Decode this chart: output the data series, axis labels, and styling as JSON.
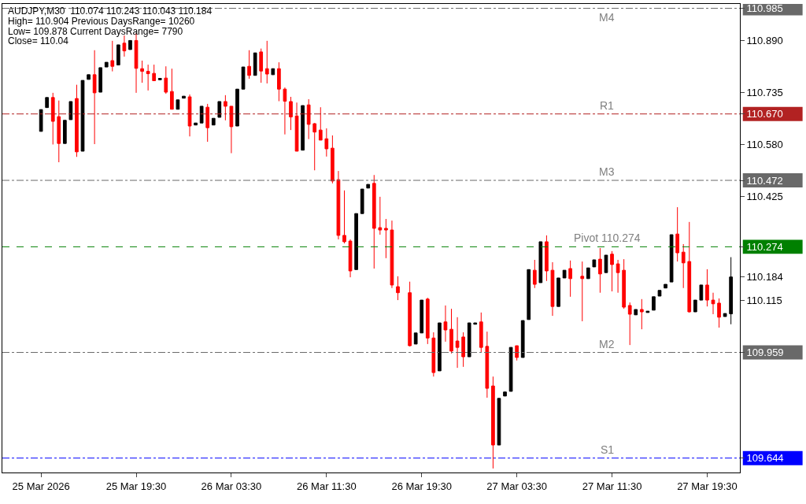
{
  "chart_data": {
    "type": "candlestick",
    "annotations": [
      "AUDJPY,M30  110.074 110.243 110.043 110.184",
      "High= 110.904 Previous DaysRange= 10260",
      "Low= 109.878 Current DaysRange= 7790",
      "Close= 110.04"
    ],
    "x": [
      "2026-03-25T11:30",
      "2026-03-25T12:00",
      "2026-03-25T12:30",
      "2026-03-25T13:00",
      "2026-03-25T13:30",
      "2026-03-25T14:00",
      "2026-03-25T14:30",
      "2026-03-25T15:00",
      "2026-03-25T15:30",
      "2026-03-25T16:00",
      "2026-03-25T16:30",
      "2026-03-25T17:00",
      "2026-03-25T17:30",
      "2026-03-25T18:00",
      "2026-03-25T18:30",
      "2026-03-25T19:00",
      "2026-03-25T19:30",
      "2026-03-25T20:00",
      "2026-03-25T20:30",
      "2026-03-25T21:00",
      "2026-03-25T21:30",
      "2026-03-25T22:00",
      "2026-03-25T22:30",
      "2026-03-25T23:00",
      "2026-03-25T23:30",
      "2026-03-26T00:00",
      "2026-03-26T00:30",
      "2026-03-26T01:00",
      "2026-03-26T01:30",
      "2026-03-26T02:00",
      "2026-03-26T02:30",
      "2026-03-26T03:00",
      "2026-03-26T03:30",
      "2026-03-26T04:00",
      "2026-03-26T04:30",
      "2026-03-26T05:00",
      "2026-03-26T05:30",
      "2026-03-26T06:00",
      "2026-03-26T06:30",
      "2026-03-26T07:00",
      "2026-03-26T07:30",
      "2026-03-26T08:00",
      "2026-03-26T08:30",
      "2026-03-26T09:00",
      "2026-03-26T09:30",
      "2026-03-26T10:00",
      "2026-03-26T10:30",
      "2026-03-26T11:00",
      "2026-03-26T11:30",
      "2026-03-26T12:00",
      "2026-03-26T12:30",
      "2026-03-26T13:00",
      "2026-03-26T13:30",
      "2026-03-26T14:00",
      "2026-03-26T14:30",
      "2026-03-26T15:00",
      "2026-03-26T15:30",
      "2026-03-26T16:00",
      "2026-03-26T16:30",
      "2026-03-26T17:00",
      "2026-03-26T17:30",
      "2026-03-26T18:30",
      "2026-03-26T19:00",
      "2026-03-26T19:30",
      "2026-03-26T20:00",
      "2026-03-26T20:30",
      "2026-03-26T21:00",
      "2026-03-26T21:30",
      "2026-03-26T22:00",
      "2026-03-26T22:30",
      "2026-03-26T23:00",
      "2026-03-26T23:30",
      "2026-03-27T00:00",
      "2026-03-27T00:30",
      "2026-03-27T01:00",
      "2026-03-27T01:30",
      "2026-03-27T02:00",
      "2026-03-27T02:30",
      "2026-03-27T03:00",
      "2026-03-27T03:30",
      "2026-03-27T04:00",
      "2026-03-27T04:30",
      "2026-03-27T05:00",
      "2026-03-27T05:30",
      "2026-03-27T06:00",
      "2026-03-27T06:30",
      "2026-03-27T07:00",
      "2026-03-27T07:30",
      "2026-03-27T08:00",
      "2026-03-27T09:00",
      "2026-03-27T09:30",
      "2026-03-27T10:00",
      "2026-03-27T10:30",
      "2026-03-27T11:00",
      "2026-03-27T11:30",
      "2026-03-27T12:00",
      "2026-03-27T12:30",
      "2026-03-27T13:00",
      "2026-03-27T13:30",
      "2026-03-27T14:00",
      "2026-03-27T14:30",
      "2026-03-27T15:00",
      "2026-03-27T15:30",
      "2026-03-27T16:00",
      "2026-03-27T16:30",
      "2026-03-27T17:00",
      "2026-03-27T17:30",
      "2026-03-27T18:00",
      "2026-03-27T18:30",
      "2026-03-27T19:00",
      "2026-03-27T19:30",
      "2026-03-27T20:00",
      "2026-03-27T20:30",
      "2026-03-27T21:00",
      "2026-03-27T21:30"
    ],
    "ohlc": [
      [
        110.618,
        110.683,
        110.618,
        110.683
      ],
      [
        110.689,
        110.719,
        110.689,
        110.719
      ],
      [
        110.719,
        110.733,
        110.579,
        110.648
      ],
      [
        110.662,
        110.71,
        110.526,
        110.582
      ],
      [
        110.582,
        110.651,
        110.582,
        110.651
      ],
      [
        110.653,
        110.707,
        110.653,
        110.707
      ],
      [
        110.716,
        110.757,
        110.542,
        110.557
      ],
      [
        110.559,
        110.77,
        110.559,
        110.77
      ],
      [
        110.773,
        110.787,
        110.773,
        110.787
      ],
      [
        110.787,
        110.86,
        110.58,
        110.733
      ],
      [
        110.735,
        110.808,
        110.735,
        110.808
      ],
      [
        110.81,
        110.824,
        110.81,
        110.824
      ],
      [
        110.829,
        110.888,
        110.797,
        110.812
      ],
      [
        110.816,
        110.876,
        110.816,
        110.876
      ],
      [
        110.881,
        110.904,
        110.841,
        110.858
      ],
      [
        110.862,
        110.889,
        110.862,
        110.889
      ],
      [
        110.889,
        110.911,
        110.733,
        110.806
      ],
      [
        110.805,
        110.829,
        110.763,
        110.797
      ],
      [
        110.797,
        110.817,
        110.74,
        110.79
      ],
      [
        110.791,
        110.817,
        110.769,
        110.769
      ],
      [
        110.772,
        110.776,
        110.772,
        110.776
      ],
      [
        110.777,
        110.812,
        110.73,
        110.735
      ],
      [
        110.737,
        110.805,
        110.684,
        110.684
      ],
      [
        110.684,
        110.712,
        110.684,
        110.712
      ],
      [
        110.717,
        110.723,
        110.717,
        110.723
      ],
      [
        110.721,
        110.728,
        110.603,
        110.634
      ],
      [
        110.637,
        110.643,
        110.637,
        110.643
      ],
      [
        110.643,
        110.693,
        110.643,
        110.693
      ],
      [
        110.69,
        110.7,
        110.587,
        110.629
      ],
      [
        110.637,
        110.657,
        110.637,
        110.657
      ],
      [
        110.66,
        110.707,
        110.66,
        110.707
      ],
      [
        110.707,
        110.726,
        110.651,
        110.693
      ],
      [
        110.693,
        110.693,
        110.553,
        110.632
      ],
      [
        110.634,
        110.744,
        110.634,
        110.744
      ],
      [
        110.744,
        110.81,
        110.744,
        110.81
      ],
      [
        110.812,
        110.86,
        110.775,
        110.785
      ],
      [
        110.785,
        110.852,
        110.785,
        110.852
      ],
      [
        110.855,
        110.865,
        110.763,
        110.798
      ],
      [
        110.805,
        110.888,
        110.761,
        110.789
      ],
      [
        110.787,
        110.805,
        110.787,
        110.805
      ],
      [
        110.805,
        110.824,
        110.708,
        110.744
      ],
      [
        110.744,
        110.749,
        110.609,
        110.708
      ],
      [
        110.707,
        110.721,
        110.622,
        110.661
      ],
      [
        110.664,
        110.704,
        110.559,
        110.559
      ],
      [
        110.562,
        110.695,
        110.562,
        110.695
      ],
      [
        110.697,
        110.714,
        110.595,
        110.639
      ],
      [
        110.641,
        110.643,
        110.502,
        110.616
      ],
      [
        110.622,
        110.69,
        110.592,
        110.592
      ],
      [
        110.596,
        110.627,
        110.543,
        110.566
      ],
      [
        110.568,
        110.606,
        110.463,
        110.47
      ],
      [
        110.474,
        110.5,
        110.296,
        110.308
      ],
      [
        110.308,
        110.442,
        110.284,
        110.289
      ],
      [
        110.291,
        110.296,
        110.183,
        110.202
      ],
      [
        110.206,
        110.373,
        110.206,
        110.373
      ],
      [
        110.373,
        110.446,
        110.373,
        110.446
      ],
      [
        110.449,
        110.46,
        110.449,
        110.46
      ],
      [
        110.463,
        110.488,
        110.209,
        110.329
      ],
      [
        110.331,
        110.423,
        110.31,
        110.324
      ],
      [
        110.329,
        110.357,
        110.24,
        110.324
      ],
      [
        110.324,
        110.352,
        110.151,
        110.16
      ],
      [
        110.155,
        110.186,
        110.115,
        110.137
      ],
      [
        110.137,
        110.17,
        109.977,
        109.979
      ],
      [
        109.984,
        110.017,
        109.984,
        110.017
      ],
      [
        110.017,
        110.115,
        110.017,
        110.115
      ],
      [
        110.118,
        110.122,
        109.984,
        110.002
      ],
      [
        110.002,
        110.019,
        109.887,
        109.899
      ],
      [
        109.904,
        110.047,
        109.904,
        110.047
      ],
      [
        110.05,
        110.099,
        109.991,
        110.026
      ],
      [
        110.028,
        110.089,
        109.956,
        109.963
      ],
      [
        109.993,
        110.064,
        109.913,
        109.974
      ],
      [
        110.005,
        110.019,
        109.916,
        109.946
      ],
      [
        109.946,
        110.047,
        109.946,
        110.047
      ],
      [
        110.043,
        110.047,
        110.043,
        110.047
      ],
      [
        110.05,
        110.078,
        109.96,
        109.974
      ],
      [
        109.977,
        110.021,
        109.824,
        109.852
      ],
      [
        109.859,
        109.887,
        109.613,
        109.683
      ],
      [
        109.683,
        109.822,
        109.683,
        109.822
      ],
      [
        109.829,
        109.841,
        109.829,
        109.841
      ],
      [
        109.843,
        109.974,
        109.843,
        109.974
      ],
      [
        109.979,
        109.979,
        109.935,
        109.944
      ],
      [
        109.944,
        110.054,
        109.944,
        110.054
      ],
      [
        110.057,
        110.206,
        110.057,
        110.206
      ],
      [
        110.204,
        110.235,
        110.151,
        110.162
      ],
      [
        110.167,
        110.289,
        110.167,
        110.289
      ],
      [
        110.289,
        110.308,
        110.172,
        110.202
      ],
      [
        110.204,
        110.228,
        110.068,
        110.096
      ],
      [
        110.096,
        110.181,
        110.096,
        110.181
      ],
      [
        110.181,
        110.204,
        110.181,
        110.204
      ],
      [
        110.209,
        110.233,
        110.125,
        110.179
      ],
      [
        110.186,
        110.23,
        110.052,
        110.179
      ],
      [
        110.179,
        110.211,
        110.179,
        110.211
      ],
      [
        110.214,
        110.235,
        110.214,
        110.235
      ],
      [
        110.237,
        110.27,
        110.137,
        110.193
      ],
      [
        110.197,
        110.249,
        110.197,
        110.249
      ],
      [
        110.252,
        110.261,
        110.141,
        110.221
      ],
      [
        110.223,
        110.235,
        110.137,
        110.197
      ],
      [
        110.204,
        110.237,
        110.089,
        110.094
      ],
      [
        110.099,
        110.108,
        109.981,
        110.073
      ],
      [
        110.071,
        110.087,
        110.071,
        110.087
      ],
      [
        110.087,
        110.118,
        110.028,
        110.08
      ],
      [
        110.078,
        110.082,
        110.078,
        110.082
      ],
      [
        110.085,
        110.125,
        110.085,
        110.125
      ],
      [
        110.127,
        110.144,
        110.127,
        110.144
      ],
      [
        110.151,
        110.162,
        110.151,
        110.162
      ],
      [
        110.169,
        110.31,
        110.169,
        110.31
      ],
      [
        110.312,
        110.392,
        110.23,
        110.256
      ],
      [
        110.258,
        110.282,
        110.151,
        110.226
      ],
      [
        110.23,
        110.348,
        110.078,
        110.08
      ],
      [
        110.08,
        110.115,
        110.08,
        110.115
      ],
      [
        110.115,
        110.16,
        110.115,
        110.16
      ],
      [
        110.16,
        110.207,
        110.096,
        110.115
      ],
      [
        110.115,
        110.137,
        110.073,
        110.104
      ],
      [
        110.106,
        110.12,
        110.033,
        110.064
      ],
      [
        110.066,
        110.075,
        110.066,
        110.075
      ],
      [
        110.074,
        110.243,
        110.043,
        110.184
      ]
    ],
    "colors": [
      "#000000",
      "#000000",
      "#ff0000",
      "#ff0000",
      "#000000",
      "#000000",
      "#ff0000",
      "#000000",
      "#000000",
      "#ff0000",
      "#000000",
      "#000000",
      "#ff0000",
      "#000000",
      "#ff0000",
      "#000000",
      "#ff0000",
      "#ff0000",
      "#ff0000",
      "#ff0000",
      "#000000",
      "#ff0000",
      "#ff0000",
      "#000000",
      "#000000",
      "#ff0000",
      "#000000",
      "#000000",
      "#ff0000",
      "#000000",
      "#000000",
      "#ff0000",
      "#ff0000",
      "#000000",
      "#000000",
      "#ff0000",
      "#000000",
      "#ff0000",
      "#ff0000",
      "#000000",
      "#ff0000",
      "#ff0000",
      "#ff0000",
      "#ff0000",
      "#000000",
      "#ff0000",
      "#ff0000",
      "#ff0000",
      "#ff0000",
      "#ff0000",
      "#ff0000",
      "#ff0000",
      "#ff0000",
      "#000000",
      "#000000",
      "#000000",
      "#ff0000",
      "#ff0000",
      "#ff0000",
      "#ff0000",
      "#ff0000",
      "#ff0000",
      "#000000",
      "#000000",
      "#ff0000",
      "#ff0000",
      "#000000",
      "#ff0000",
      "#ff0000",
      "#ff0000",
      "#ff0000",
      "#000000",
      "#000000",
      "#ff0000",
      "#ff0000",
      "#ff0000",
      "#000000",
      "#000000",
      "#000000",
      "#ff0000",
      "#000000",
      "#000000",
      "#ff0000",
      "#000000",
      "#ff0000",
      "#ff0000",
      "#000000",
      "#000000",
      "#ff0000",
      "#ff0000",
      "#000000",
      "#000000",
      "#ff0000",
      "#000000",
      "#ff0000",
      "#ff0000",
      "#ff0000",
      "#ff0000",
      "#000000",
      "#ff0000",
      "#000000",
      "#000000",
      "#000000",
      "#000000",
      "#000000",
      "#ff0000",
      "#ff0000",
      "#ff0000",
      "#000000",
      "#000000",
      "#ff0000",
      "#ff0000",
      "#ff0000",
      "#000000",
      "#000000"
    ],
    "xlim": [
      "2026-03-25T08:15",
      "2026-03-27T22:15"
    ],
    "ylim": [
      109.601,
      110.998
    ],
    "xticks": [
      {
        "value": "2026-03-25T11:30",
        "label": "25 Mar 2026"
      },
      {
        "value": "2026-03-25T19:30",
        "label": "25 Mar 19:30"
      },
      {
        "value": "2026-03-26T03:30",
        "label": "26 Mar 03:30"
      },
      {
        "value": "2026-03-26T11:30",
        "label": "26 Mar 11:30"
      },
      {
        "value": "2026-03-26T19:30",
        "label": "26 Mar 19:30"
      },
      {
        "value": "2026-03-27T03:30",
        "label": "27 Mar 03:30"
      },
      {
        "value": "2026-03-27T11:30",
        "label": "27 Mar 11:30"
      },
      {
        "value": "2026-03-27T19:30",
        "label": "27 Mar 19:30"
      }
    ],
    "yticks": [
      110.985,
      {
        "value": 110.89,
        "label": "110.890"
      },
      110.735,
      {
        "value": 110.67,
        "label": "110.670"
      },
      {
        "value": 110.58,
        "label": "110.580"
      },
      110.472,
      110.425,
      110.274,
      110.184,
      110.115,
      109.959,
      109.644
    ],
    "ref_lines": [
      {
        "axis": "y",
        "value": 110.985,
        "label": "M4",
        "color": "#696969",
        "line_style": "dashdot"
      },
      {
        "axis": "y",
        "value": 110.67,
        "label": "R1",
        "color": "#b22222",
        "line_style": "dashdot"
      },
      {
        "axis": "y",
        "value": 110.472,
        "label": "M3",
        "color": "#696969",
        "line_style": "dashdot"
      },
      {
        "axis": "y",
        "value": 110.274,
        "label": "Pivot 110.274",
        "color": "#008000",
        "line_style": "dashed"
      },
      {
        "axis": "y",
        "value": 109.959,
        "label": "M2",
        "color": "#696969",
        "line_style": "dashdot"
      },
      {
        "axis": "y",
        "value": 109.644,
        "label": "S1",
        "color": "#0000ff",
        "line_style": "dashdot"
      }
    ]
  }
}
